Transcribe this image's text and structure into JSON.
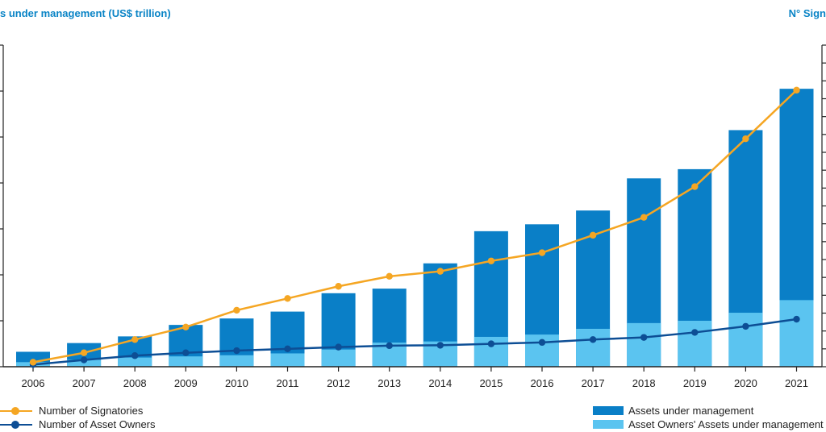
{
  "colors": {
    "aum": "#0a7fc7",
    "ao_aum": "#5bc4f0",
    "signatories": "#f5a623",
    "asset_owners": "#0d4e95",
    "axis": "#222222",
    "title": "#0a84c6"
  },
  "chart_data": {
    "type": "bar",
    "stacked": true,
    "left_axis_title": "s under management (US$ trillion)",
    "right_axis_title": "N° Sign",
    "categories": [
      "2006",
      "2007",
      "2008",
      "2009",
      "2010",
      "2011",
      "2012",
      "2013",
      "2014",
      "2015",
      "2016",
      "2017",
      "2018",
      "2019",
      "2020",
      "2021"
    ],
    "left_ylim": [
      0,
      140
    ],
    "right_ylim": [
      0,
      4500
    ],
    "series": [
      {
        "name": "Assets under management",
        "type": "bar",
        "axis": "left",
        "values": [
          6.5,
          10.3,
          13.2,
          18.2,
          21.0,
          24.0,
          32.0,
          34.0,
          45.0,
          59.0,
          62.0,
          68.0,
          82.0,
          86.0,
          103.0,
          121.0
        ]
      },
      {
        "name": "Asset Owners' Assets under management",
        "type": "bar",
        "axis": "left",
        "values": [
          2.0,
          3.0,
          4.0,
          4.5,
          5.0,
          5.8,
          7.5,
          10.5,
          11.0,
          13.0,
          14.0,
          16.5,
          19.0,
          20.0,
          23.5,
          29.0
        ]
      },
      {
        "name": "Number of Signatories",
        "type": "line",
        "axis": "right",
        "values": [
          63,
          195,
          380,
          555,
          790,
          955,
          1125,
          1265,
          1335,
          1480,
          1595,
          1840,
          2090,
          2520,
          3190,
          3870
        ]
      },
      {
        "name": "Number of Asset Owners",
        "type": "line",
        "axis": "right",
        "values": [
          30,
          95,
          155,
          195,
          225,
          250,
          275,
          295,
          300,
          320,
          340,
          380,
          410,
          480,
          565,
          665
        ]
      }
    ]
  },
  "legend": {
    "signatories": "Number of Signatories",
    "asset_owners": "Number of Asset Owners",
    "aum": "Assets under management",
    "ao_aum": "Asset Owners' Assets under management"
  }
}
